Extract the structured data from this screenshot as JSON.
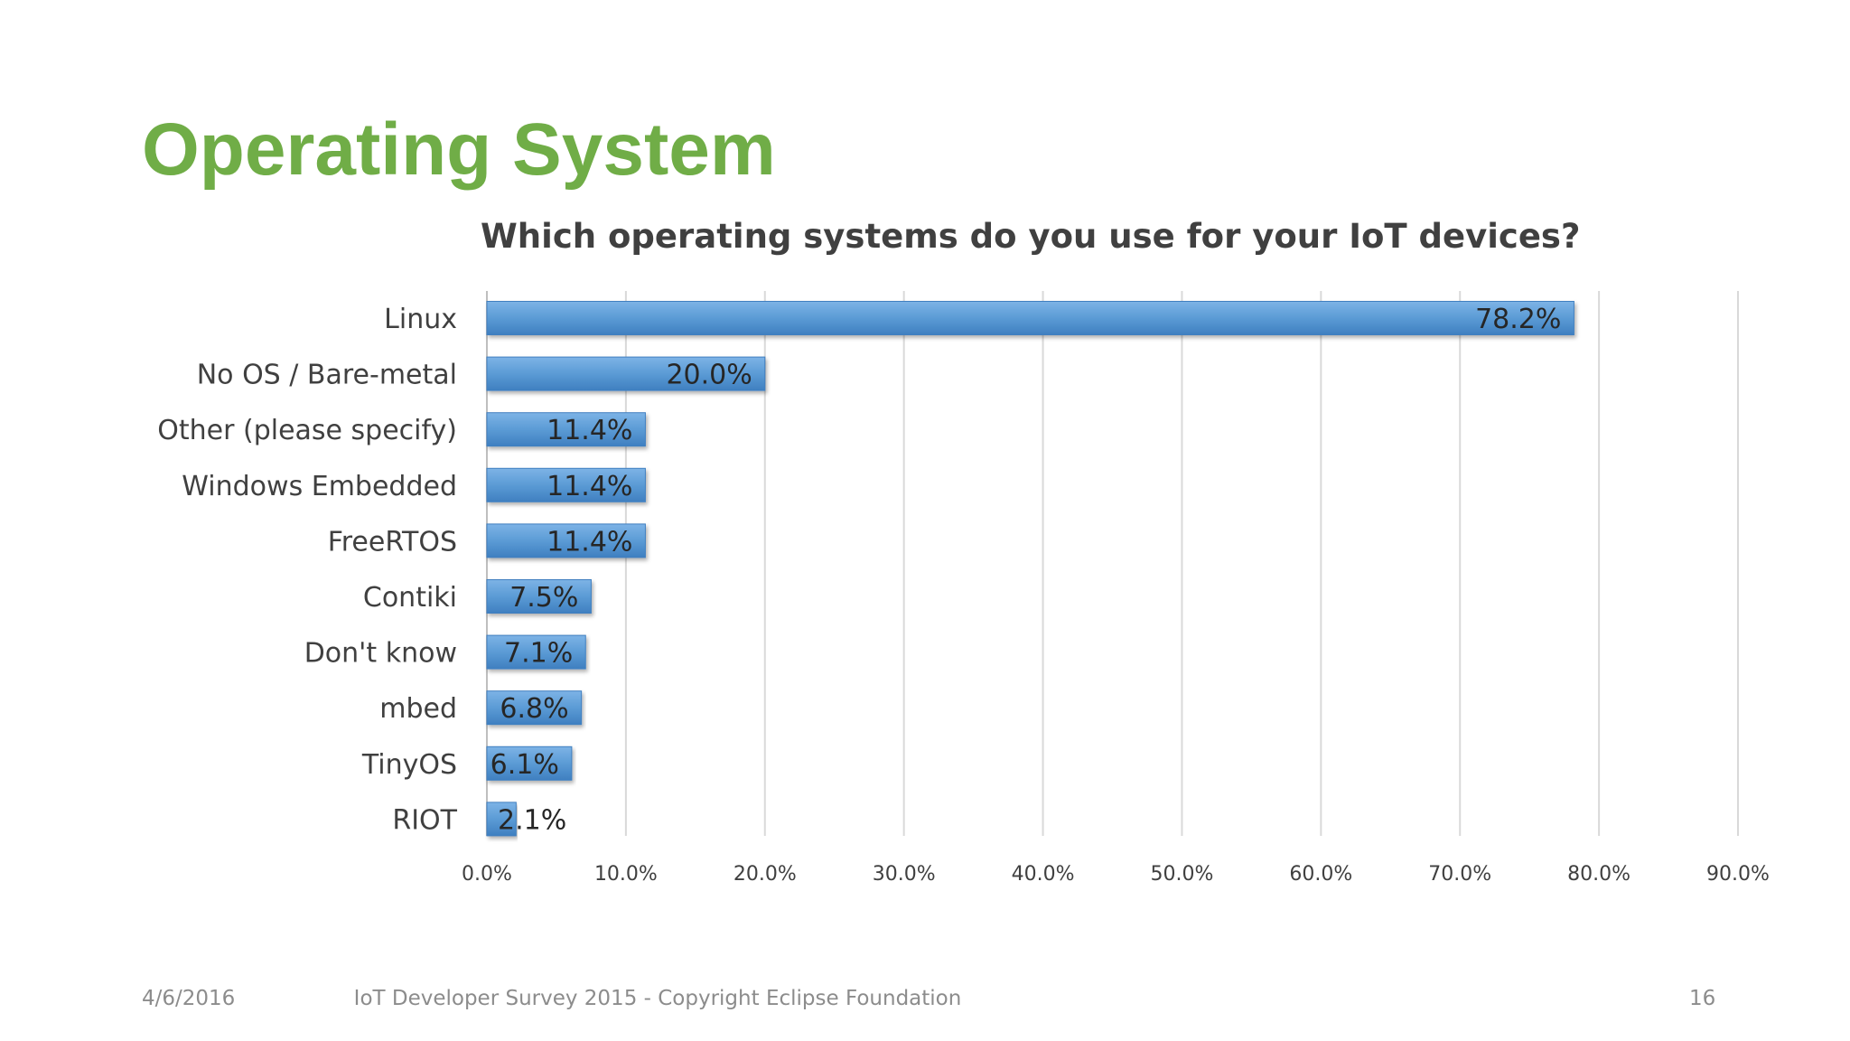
{
  "slide": {
    "title": "Operating System",
    "date": "4/6/2016",
    "footer": "IoT Developer Survey 2015 - Copyright Eclipse Foundation",
    "page_number": "16"
  },
  "colors": {
    "title": "#70ad47",
    "bar": "#5b9bd5",
    "bar_dark": "#3f7fc0",
    "gridline": "#d9d9d9"
  },
  "chart_data": {
    "type": "bar",
    "orientation": "horizontal",
    "title": "Which operating systems do you use for your IoT devices?",
    "categories": [
      "Linux",
      "No OS / Bare-metal",
      "Other (please specify)",
      "Windows Embedded",
      "FreeRTOS",
      "Contiki",
      "Don't know",
      "mbed",
      "TinyOS",
      "RIOT"
    ],
    "values": [
      78.2,
      20.0,
      11.4,
      11.4,
      11.4,
      7.5,
      7.1,
      6.8,
      6.1,
      2.1
    ],
    "value_labels": [
      "78.2%",
      "20.0%",
      "11.4%",
      "11.4%",
      "11.4%",
      "7.5%",
      "7.1%",
      "6.8%",
      "6.1%",
      "2.1%"
    ],
    "xlim": [
      0,
      90
    ],
    "ticks": [
      0,
      10,
      20,
      30,
      40,
      50,
      60,
      70,
      80,
      90
    ],
    "tick_labels": [
      "0.0%",
      "10.0%",
      "20.0%",
      "30.0%",
      "40.0%",
      "50.0%",
      "60.0%",
      "70.0%",
      "80.0%",
      "90.0%"
    ],
    "grid": true,
    "legend": false
  }
}
